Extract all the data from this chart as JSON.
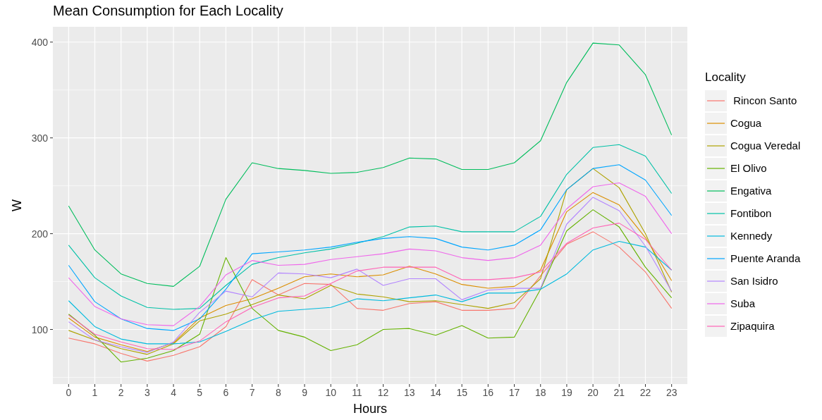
{
  "chart_data": {
    "type": "line",
    "title": "Mean Consumption for Each Locality",
    "xlabel": "Hours",
    "ylabel": "W",
    "legend_title": "Locality",
    "x": [
      0,
      1,
      2,
      3,
      4,
      5,
      6,
      7,
      8,
      9,
      10,
      11,
      12,
      13,
      14,
      15,
      16,
      17,
      18,
      19,
      20,
      21,
      22,
      23
    ],
    "xlim": [
      -0.6,
      23.6
    ],
    "xticks": [
      0,
      1,
      2,
      3,
      4,
      5,
      6,
      7,
      8,
      9,
      10,
      11,
      12,
      13,
      14,
      15,
      16,
      17,
      18,
      19,
      20,
      21,
      22,
      23
    ],
    "ylim": [
      43,
      416
    ],
    "yticks": [
      100,
      200,
      300,
      400
    ],
    "grid": true,
    "legend": "right",
    "line_style": "solid",
    "marker": "none",
    "series": [
      {
        "name": " Rincon Santo",
        "color": "#f8766d",
        "values": [
          91,
          85,
          75,
          67,
          73,
          82,
          103,
          152,
          136,
          148,
          147,
          122,
          120,
          127,
          129,
          120,
          120,
          122,
          156,
          189,
          202,
          186,
          160,
          122
        ]
      },
      {
        "name": "Cogua",
        "color": "#db8e00",
        "values": [
          112,
          92,
          84,
          77,
          86,
          112,
          125,
          132,
          143,
          155,
          158,
          155,
          157,
          166,
          158,
          147,
          143,
          145,
          162,
          223,
          243,
          230,
          196,
          151
        ]
      },
      {
        "name": "Cogua Veredal",
        "color": "#aea200",
        "values": [
          99,
          89,
          80,
          74,
          85,
          109,
          116,
          126,
          136,
          132,
          146,
          137,
          134,
          129,
          130,
          126,
          122,
          128,
          153,
          246,
          268,
          248,
          200,
          139
        ]
      },
      {
        "name": "El Olivo",
        "color": "#64b200",
        "values": [
          116,
          94,
          66,
          70,
          78,
          95,
          175,
          122,
          99,
          92,
          78,
          84,
          100,
          101,
          94,
          104,
          91,
          92,
          142,
          203,
          225,
          207,
          165,
          133
        ]
      },
      {
        "name": "Engativa",
        "color": "#00bd5c",
        "values": [
          229,
          183,
          158,
          148,
          145,
          166,
          236,
          274,
          268,
          266,
          263,
          264,
          269,
          279,
          278,
          267,
          267,
          274,
          297,
          358,
          399,
          397,
          366,
          303
        ]
      },
      {
        "name": "Fontibon",
        "color": "#00c1a7",
        "values": [
          188,
          154,
          135,
          123,
          121,
          122,
          146,
          168,
          175,
          180,
          184,
          190,
          197,
          207,
          208,
          202,
          202,
          202,
          218,
          262,
          290,
          293,
          281,
          242
        ]
      },
      {
        "name": "Kennedy",
        "color": "#00bade",
        "values": [
          130,
          103,
          90,
          85,
          85,
          87,
          98,
          110,
          119,
          121,
          123,
          132,
          130,
          133,
          136,
          129,
          138,
          138,
          142,
          158,
          183,
          192,
          186,
          162
        ]
      },
      {
        "name": "Puente Aranda",
        "color": "#00a6ff",
        "values": [
          167,
          129,
          111,
          101,
          99,
          111,
          142,
          179,
          181,
          183,
          186,
          191,
          195,
          197,
          195,
          186,
          183,
          188,
          204,
          246,
          268,
          272,
          256,
          219
        ]
      },
      {
        "name": "San Isidro",
        "color": "#b385ff",
        "values": [
          108,
          89,
          82,
          76,
          87,
          118,
          140,
          134,
          159,
          158,
          154,
          163,
          146,
          153,
          153,
          131,
          141,
          143,
          143,
          210,
          238,
          224,
          187,
          140
        ]
      },
      {
        "name": "Suba",
        "color": "#ef67eb",
        "values": [
          154,
          124,
          111,
          105,
          104,
          124,
          157,
          172,
          167,
          168,
          173,
          176,
          179,
          184,
          182,
          175,
          172,
          175,
          188,
          226,
          249,
          253,
          239,
          200
        ]
      },
      {
        "name": "Zipaquira",
        "color": "#ff63b6",
        "values": [
          115,
          95,
          87,
          80,
          79,
          88,
          108,
          123,
          133,
          135,
          148,
          161,
          165,
          165,
          165,
          152,
          152,
          154,
          160,
          190,
          206,
          211,
          194,
          162
        ]
      }
    ]
  }
}
